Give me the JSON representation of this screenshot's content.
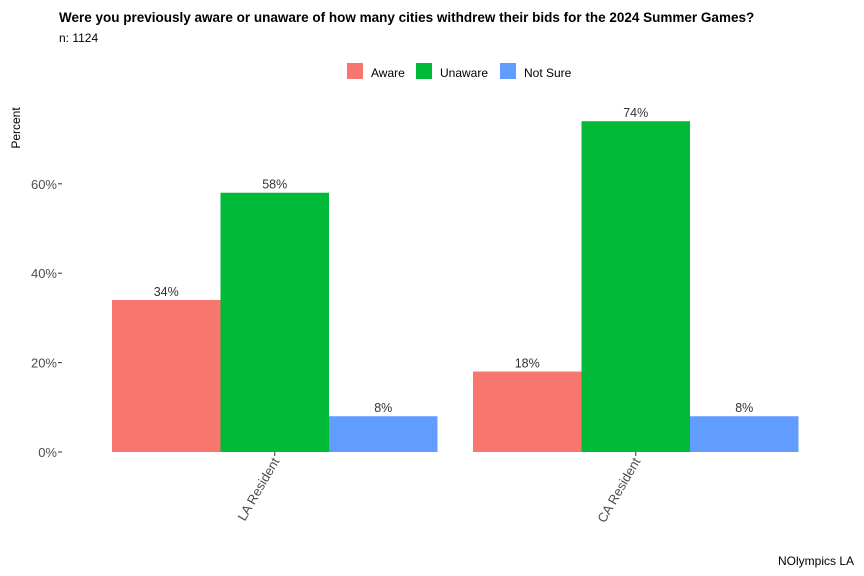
{
  "chart_data": {
    "type": "bar",
    "title": "Were you previously aware or unaware of how many cities withdrew their bids for the 2024 Summer Games?",
    "subtitle": "n: 1124",
    "caption": "NOlympics LA",
    "ylabel": "Percent",
    "xlabel": "",
    "categories": [
      "LA Resident",
      "CA Resident"
    ],
    "series": [
      {
        "name": "Aware",
        "color": "#F8766D",
        "values": [
          34,
          18
        ],
        "labels": [
          "34%",
          "18%"
        ]
      },
      {
        "name": "Unaware",
        "color": "#00BA38",
        "values": [
          58,
          74
        ],
        "labels": [
          "58%",
          "74%"
        ]
      },
      {
        "name": "Not Sure",
        "color": "#619CFF",
        "values": [
          8,
          8
        ],
        "labels": [
          "8%",
          "8%"
        ]
      }
    ],
    "yticks": [
      0,
      20,
      40,
      60
    ],
    "ytick_labels": [
      "0%",
      "20%",
      "40%",
      "60%"
    ],
    "ylim": [
      0,
      74
    ],
    "grid": false,
    "legend_position": "top"
  }
}
